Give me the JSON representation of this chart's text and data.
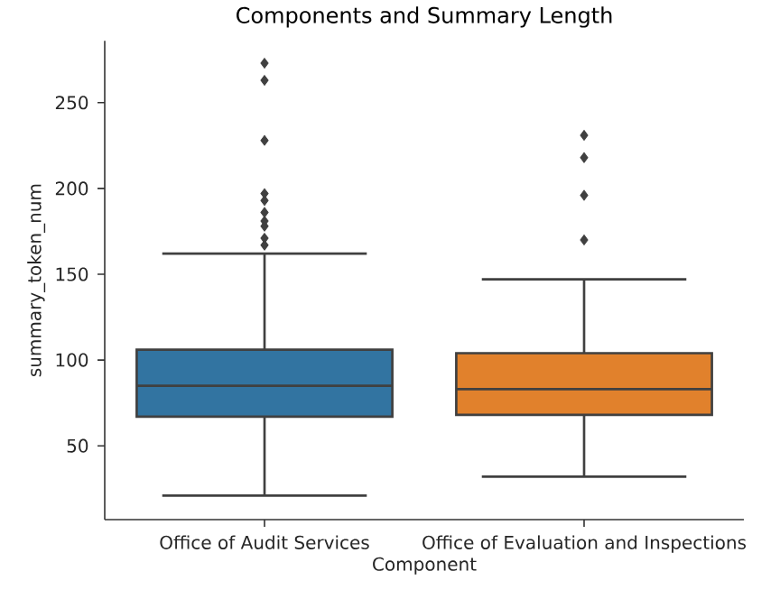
{
  "chart_data": {
    "type": "box",
    "title": "Components and Summary Length",
    "xlabel": "Component",
    "ylabel": "summary_token_num",
    "categories": [
      "Office of Audit Services",
      "Office of Evaluation and Inspections"
    ],
    "colors": [
      "#3274a1",
      "#e1812c"
    ],
    "boxes": [
      {
        "low": 21,
        "q1": 67,
        "median": 85,
        "q3": 106,
        "high": 162,
        "outliers": [
          167,
          171,
          178,
          181,
          186,
          193,
          197,
          228,
          263,
          273
        ]
      },
      {
        "low": 32,
        "q1": 68,
        "median": 83,
        "q3": 104,
        "high": 147,
        "outliers": [
          170,
          196,
          218,
          231
        ]
      }
    ],
    "marker": "diamond",
    "ylim": [
      7,
      286
    ],
    "yticks": [
      50,
      100,
      150,
      200,
      250
    ]
  }
}
